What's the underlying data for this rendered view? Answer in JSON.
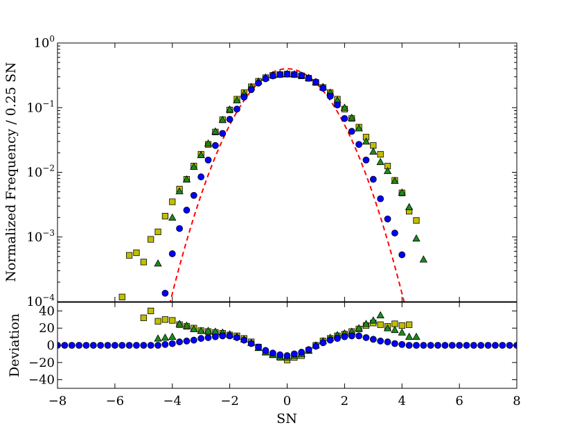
{
  "chart_data": [
    {
      "panel": "top",
      "type": "scatter",
      "ylabel": "Normalized Frequency / 0.25 SN",
      "yscale": "log",
      "xlim": [
        -8,
        8
      ],
      "ylim": [
        0.0001,
        1
      ],
      "yticks": [
        {
          "value": 1,
          "base": "10",
          "exp": "0"
        },
        {
          "value": 0.1,
          "base": "10",
          "exp": "−1"
        },
        {
          "value": 0.01,
          "base": "10",
          "exp": "−2"
        },
        {
          "value": 0.001,
          "base": "10",
          "exp": "−3"
        },
        {
          "value": 0.0001,
          "base": "10",
          "exp": "−4"
        }
      ],
      "series": [
        {
          "marker": "square",
          "color": "#bfbf00",
          "points": [
            [
              -5.75,
              0.000118
            ],
            [
              -5.5,
              0.00052
            ],
            [
              -5.25,
              0.00057
            ],
            [
              -5.0,
              0.00041
            ],
            [
              -4.75,
              0.00092
            ],
            [
              -4.5,
              0.0012
            ],
            [
              -4.25,
              0.0021
            ],
            [
              -4.0,
              0.0035
            ],
            [
              -3.75,
              0.0055
            ],
            [
              -3.5,
              0.0078
            ],
            [
              -3.25,
              0.0125
            ],
            [
              -3.0,
              0.019
            ],
            [
              -2.75,
              0.027
            ],
            [
              -2.5,
              0.042
            ],
            [
              -2.25,
              0.065
            ],
            [
              -2.0,
              0.092
            ],
            [
              -1.75,
              0.135
            ],
            [
              -1.5,
              0.17
            ],
            [
              -1.25,
              0.21
            ],
            [
              -1.0,
              0.255
            ],
            [
              -0.75,
              0.29
            ],
            [
              -0.5,
              0.315
            ],
            [
              -0.25,
              0.325
            ],
            [
              0.0,
              0.33
            ],
            [
              0.25,
              0.325
            ],
            [
              0.5,
              0.31
            ],
            [
              0.75,
              0.285
            ],
            [
              1.0,
              0.245
            ],
            [
              1.25,
              0.205
            ],
            [
              1.5,
              0.17
            ],
            [
              1.75,
              0.135
            ],
            [
              2.0,
              0.095
            ],
            [
              2.25,
              0.068
            ],
            [
              2.5,
              0.05
            ],
            [
              2.75,
              0.035
            ],
            [
              3.0,
              0.026
            ],
            [
              3.25,
              0.019
            ],
            [
              3.5,
              0.0125
            ],
            [
              3.75,
              0.0075
            ],
            [
              4.0,
              0.0048
            ],
            [
              4.25,
              0.0025
            ],
            [
              4.5,
              0.0018
            ]
          ]
        },
        {
          "marker": "triangle",
          "color": "#1a8c1a",
          "points": [
            [
              -4.5,
              0.00039
            ],
            [
              -4.0,
              0.002
            ],
            [
              -3.75,
              0.0051
            ],
            [
              -3.5,
              0.0078
            ],
            [
              -3.25,
              0.0122
            ],
            [
              -3.0,
              0.0185
            ],
            [
              -2.75,
              0.028
            ],
            [
              -2.5,
              0.043
            ],
            [
              -2.25,
              0.065
            ],
            [
              -2.0,
              0.094
            ],
            [
              -1.75,
              0.13
            ],
            [
              -1.5,
              0.165
            ],
            [
              -1.25,
              0.21
            ],
            [
              -1.0,
              0.255
            ],
            [
              -0.75,
              0.295
            ],
            [
              -0.5,
              0.32
            ],
            [
              -0.25,
              0.33
            ],
            [
              0.0,
              0.335
            ],
            [
              0.25,
              0.33
            ],
            [
              0.5,
              0.315
            ],
            [
              0.75,
              0.29
            ],
            [
              1.0,
              0.25
            ],
            [
              1.25,
              0.21
            ],
            [
              1.5,
              0.172
            ],
            [
              1.75,
              0.13
            ],
            [
              2.0,
              0.1
            ],
            [
              2.25,
              0.07
            ],
            [
              2.5,
              0.048
            ],
            [
              2.75,
              0.03
            ],
            [
              3.0,
              0.021
            ],
            [
              3.25,
              0.0145
            ],
            [
              3.5,
              0.0105
            ],
            [
              3.75,
              0.0074
            ],
            [
              4.0,
              0.0049
            ],
            [
              4.25,
              0.0029
            ],
            [
              4.5,
              0.00095
            ],
            [
              4.75,
              0.00045
            ]
          ]
        },
        {
          "marker": "circle",
          "color": "#0000ff",
          "points": [
            [
              -4.25,
              0.000135
            ],
            [
              -4.0,
              0.00055
            ],
            [
              -3.75,
              0.00135
            ],
            [
              -3.5,
              0.0026
            ],
            [
              -3.25,
              0.0044
            ],
            [
              -3.0,
              0.0085
            ],
            [
              -2.75,
              0.0155
            ],
            [
              -2.5,
              0.026
            ],
            [
              -2.25,
              0.04
            ],
            [
              -2.0,
              0.066
            ],
            [
              -1.75,
              0.095
            ],
            [
              -1.5,
              0.145
            ],
            [
              -1.25,
              0.19
            ],
            [
              -1.0,
              0.24
            ],
            [
              -0.75,
              0.28
            ],
            [
              -0.5,
              0.31
            ],
            [
              -0.25,
              0.325
            ],
            [
              0.0,
              0.33
            ],
            [
              0.25,
              0.325
            ],
            [
              0.5,
              0.315
            ],
            [
              0.75,
              0.285
            ],
            [
              1.0,
              0.25
            ],
            [
              1.25,
              0.2
            ],
            [
              1.5,
              0.15
            ],
            [
              1.75,
              0.11
            ],
            [
              2.0,
              0.068
            ],
            [
              2.25,
              0.043
            ],
            [
              2.5,
              0.027
            ],
            [
              2.75,
              0.0155
            ],
            [
              3.0,
              0.0078
            ],
            [
              3.25,
              0.0039
            ],
            [
              3.5,
              0.0019
            ],
            [
              3.75,
              0.00115
            ],
            [
              4.0,
              0.00053
            ]
          ]
        }
      ],
      "reference_curve": {
        "style": "dashed",
        "color": "#ff0000",
        "function": "standard normal density × 0.25 SN bin",
        "x_range": [
          -4.1,
          4.1
        ]
      }
    },
    {
      "panel": "bottom",
      "type": "scatter",
      "xlabel": "SN",
      "ylabel": "Deviation",
      "xlim": [
        -8,
        8
      ],
      "ylim": [
        -50,
        50
      ],
      "xticks": [
        -8,
        -6,
        -4,
        -2,
        0,
        2,
        4,
        6,
        8
      ],
      "xtick_labels": [
        "−8",
        "−6",
        "−4",
        "−2",
        "0",
        "2",
        "4",
        "6",
        "8"
      ],
      "yticks": [
        -40,
        -20,
        0,
        20,
        40
      ],
      "ytick_labels": [
        "−40",
        "−20",
        "0",
        "20",
        "40"
      ],
      "series": [
        {
          "marker": "square",
          "color": "#bfbf00",
          "points": [
            [
              -5.0,
              32
            ],
            [
              -4.75,
              40
            ],
            [
              -4.5,
              28
            ],
            [
              -4.25,
              30
            ],
            [
              -4.0,
              29
            ],
            [
              -3.75,
              24
            ],
            [
              -3.5,
              22
            ],
            [
              -3.25,
              20
            ],
            [
              -3.0,
              17
            ],
            [
              -2.75,
              16
            ],
            [
              -2.5,
              15
            ],
            [
              -2.25,
              14
            ],
            [
              -2.0,
              12
            ],
            [
              -1.75,
              11
            ],
            [
              -1.5,
              8
            ],
            [
              -1.25,
              4
            ],
            [
              -1.0,
              -2
            ],
            [
              -0.75,
              -8
            ],
            [
              -0.5,
              -11
            ],
            [
              -0.25,
              -14
            ],
            [
              0.0,
              -17
            ],
            [
              0.25,
              -14
            ],
            [
              0.5,
              -12
            ],
            [
              0.75,
              -6
            ],
            [
              1.0,
              0
            ],
            [
              1.25,
              5
            ],
            [
              1.5,
              8
            ],
            [
              1.75,
              11
            ],
            [
              2.0,
              13
            ],
            [
              2.25,
              16
            ],
            [
              2.5,
              19
            ],
            [
              2.75,
              23
            ],
            [
              3.0,
              26
            ],
            [
              3.25,
              24
            ],
            [
              3.5,
              22
            ],
            [
              3.75,
              25
            ],
            [
              4.0,
              23
            ],
            [
              4.25,
              24
            ]
          ]
        },
        {
          "marker": "triangle",
          "color": "#1a8c1a",
          "points": [
            [
              -4.5,
              8
            ],
            [
              -4.25,
              9
            ],
            [
              -4.0,
              10
            ],
            [
              -3.75,
              25
            ],
            [
              -3.5,
              23
            ],
            [
              -3.25,
              19
            ],
            [
              -3.0,
              17
            ],
            [
              -2.75,
              17
            ],
            [
              -2.5,
              16
            ],
            [
              -2.25,
              15
            ],
            [
              -2.0,
              13
            ],
            [
              -1.75,
              10
            ],
            [
              -1.5,
              7
            ],
            [
              -1.25,
              3
            ],
            [
              -1.0,
              -3
            ],
            [
              -0.75,
              -8
            ],
            [
              -0.5,
              -11
            ],
            [
              -0.25,
              -13
            ],
            [
              0.0,
              -14
            ],
            [
              0.25,
              -12
            ],
            [
              0.5,
              -10
            ],
            [
              0.75,
              -6
            ],
            [
              1.0,
              0
            ],
            [
              1.25,
              5
            ],
            [
              1.5,
              9
            ],
            [
              1.75,
              12
            ],
            [
              2.0,
              14
            ],
            [
              2.25,
              16
            ],
            [
              2.5,
              20
            ],
            [
              2.75,
              25
            ],
            [
              3.0,
              29
            ],
            [
              3.25,
              35
            ],
            [
              3.5,
              20
            ],
            [
              3.75,
              18
            ],
            [
              4.0,
              15
            ],
            [
              4.25,
              10
            ],
            [
              4.5,
              10
            ]
          ]
        },
        {
          "marker": "circle",
          "color": "#0000ff",
          "points": [
            [
              -8.0,
              0
            ],
            [
              -7.75,
              0
            ],
            [
              -7.5,
              0
            ],
            [
              -7.25,
              0
            ],
            [
              -7.0,
              0
            ],
            [
              -6.75,
              0
            ],
            [
              -6.5,
              0
            ],
            [
              -6.25,
              0
            ],
            [
              -6.0,
              0
            ],
            [
              -5.75,
              0
            ],
            [
              -5.5,
              0
            ],
            [
              -5.25,
              0
            ],
            [
              -5.0,
              0
            ],
            [
              -4.75,
              0
            ],
            [
              -4.5,
              0
            ],
            [
              -4.25,
              1
            ],
            [
              -4.0,
              2
            ],
            [
              -3.75,
              4
            ],
            [
              -3.5,
              5
            ],
            [
              -3.25,
              6
            ],
            [
              -3.0,
              8
            ],
            [
              -2.75,
              9
            ],
            [
              -2.5,
              10
            ],
            [
              -2.25,
              11
            ],
            [
              -2.0,
              11
            ],
            [
              -1.75,
              9
            ],
            [
              -1.5,
              6
            ],
            [
              -1.25,
              2
            ],
            [
              -1.0,
              -2
            ],
            [
              -0.75,
              -6
            ],
            [
              -0.5,
              -9
            ],
            [
              -0.25,
              -11
            ],
            [
              0.0,
              -12
            ],
            [
              0.25,
              -10
            ],
            [
              0.5,
              -8
            ],
            [
              0.75,
              -5
            ],
            [
              1.0,
              -1
            ],
            [
              1.25,
              3
            ],
            [
              1.5,
              6
            ],
            [
              1.75,
              8
            ],
            [
              2.0,
              10
            ],
            [
              2.25,
              11
            ],
            [
              2.5,
              11
            ],
            [
              2.75,
              9
            ],
            [
              3.0,
              7
            ],
            [
              3.25,
              5
            ],
            [
              3.5,
              4
            ],
            [
              3.75,
              2
            ],
            [
              4.0,
              1
            ],
            [
              4.25,
              0
            ],
            [
              4.5,
              0
            ],
            [
              4.75,
              0
            ],
            [
              5.0,
              0
            ],
            [
              5.25,
              0
            ],
            [
              5.5,
              0
            ],
            [
              5.75,
              0
            ],
            [
              6.0,
              0
            ],
            [
              6.25,
              0
            ],
            [
              6.5,
              0
            ],
            [
              6.75,
              0
            ],
            [
              7.0,
              0
            ],
            [
              7.25,
              0
            ],
            [
              7.5,
              0
            ],
            [
              7.75,
              0
            ],
            [
              8.0,
              0
            ]
          ]
        }
      ]
    }
  ]
}
